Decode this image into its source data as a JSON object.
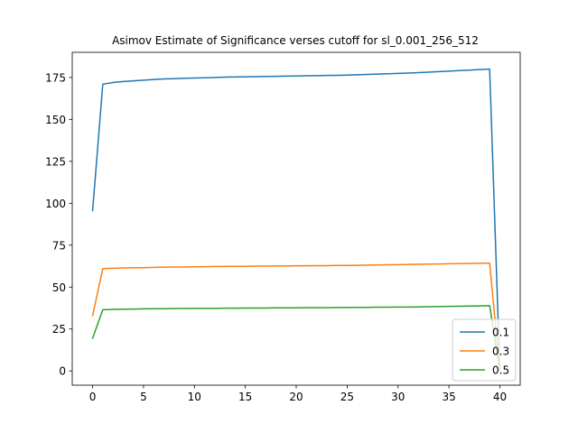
{
  "chart_data": {
    "type": "line",
    "title": "Asimov Estimate of Significance verses cutoff for sl_0.001_256_512",
    "xlabel": "",
    "ylabel": "",
    "xlim": [
      -2,
      42
    ],
    "ylim": [
      -8.5,
      190
    ],
    "xticks": [
      0,
      5,
      10,
      15,
      20,
      25,
      30,
      35,
      40
    ],
    "yticks": [
      0,
      25,
      50,
      75,
      100,
      125,
      150,
      175
    ],
    "grid": false,
    "legend_position": "lower-right",
    "x": [
      0,
      1,
      2,
      3,
      4,
      5,
      6,
      7,
      8,
      9,
      10,
      11,
      12,
      13,
      14,
      15,
      16,
      17,
      18,
      19,
      20,
      21,
      22,
      23,
      24,
      25,
      26,
      27,
      28,
      29,
      30,
      31,
      32,
      33,
      34,
      35,
      36,
      37,
      38,
      39,
      40
    ],
    "series": [
      {
        "name": "0.1",
        "color": "#1f77b4",
        "values": [
          95.6,
          171.0,
          172.0,
          172.6,
          173.0,
          173.4,
          173.8,
          174.1,
          174.3,
          174.5,
          174.7,
          174.8,
          175.0,
          175.2,
          175.3,
          175.4,
          175.5,
          175.6,
          175.7,
          175.8,
          175.9,
          176.0,
          176.1,
          176.2,
          176.3,
          176.4,
          176.6,
          176.8,
          177.0,
          177.2,
          177.4,
          177.6,
          177.9,
          178.2,
          178.5,
          178.8,
          179.1,
          179.4,
          179.7,
          180.0,
          0.0
        ]
      },
      {
        "name": "0.3",
        "color": "#ff7f0e",
        "values": [
          33.0,
          61.0,
          61.2,
          61.4,
          61.5,
          61.6,
          61.8,
          61.9,
          62.0,
          62.0,
          62.1,
          62.2,
          62.3,
          62.3,
          62.4,
          62.4,
          62.5,
          62.5,
          62.6,
          62.6,
          62.7,
          62.7,
          62.8,
          62.8,
          62.9,
          62.9,
          63.0,
          63.1,
          63.2,
          63.3,
          63.4,
          63.5,
          63.6,
          63.7,
          63.8,
          63.9,
          64.0,
          64.1,
          64.2,
          64.3,
          0.0
        ]
      },
      {
        "name": "0.5",
        "color": "#2ca02c",
        "values": [
          19.5,
          36.5,
          36.7,
          36.8,
          36.9,
          37.0,
          37.1,
          37.1,
          37.2,
          37.2,
          37.3,
          37.3,
          37.3,
          37.4,
          37.4,
          37.5,
          37.5,
          37.5,
          37.6,
          37.6,
          37.6,
          37.7,
          37.7,
          37.7,
          37.8,
          37.8,
          37.9,
          37.9,
          38.0,
          38.0,
          38.1,
          38.1,
          38.2,
          38.3,
          38.4,
          38.5,
          38.6,
          38.7,
          38.8,
          38.9,
          0.0
        ]
      }
    ]
  }
}
